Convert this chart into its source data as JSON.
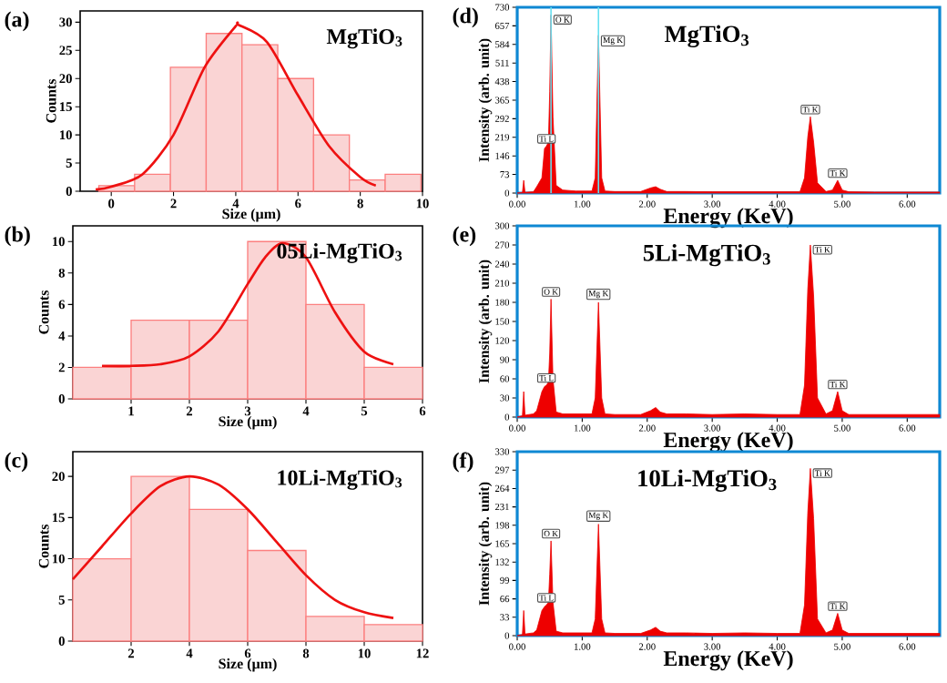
{
  "chart_data": [
    {
      "type": "histogram",
      "title": "MgTiO$_{3}$",
      "xlabel": "Size (µm)",
      "ylabel": "Counts",
      "xlim": [
        -1,
        10
      ],
      "ylim": [
        0,
        32
      ],
      "xticks": [
        0,
        2,
        4,
        6,
        8,
        10
      ],
      "yticks": [
        0,
        5,
        10,
        15,
        20,
        25,
        30
      ],
      "annotations": [
        "(a)"
      ],
      "series": [
        {
          "type": "histogram",
          "color": "#fad4d4",
          "bins": [
            -0.4,
            0.75,
            1.9,
            3.05,
            4.2,
            5.35,
            6.5,
            7.65,
            8.8,
            9.95
          ],
          "values": [
            1,
            3,
            22,
            28,
            26,
            20,
            10,
            2,
            3
          ]
        },
        {
          "type": "line",
          "color": "#ee1111",
          "x": [
            -0.5,
            0,
            1,
            2,
            3,
            4,
            4.1,
            5,
            6,
            7,
            8,
            8.5
          ],
          "values": [
            0.3,
            0.8,
            3,
            10,
            22,
            29.3,
            29.5,
            26.5,
            17,
            8,
            2.5,
            1
          ]
        }
      ]
    },
    {
      "type": "histogram",
      "title": "05Li-MgTiO$_{3}$",
      "xlabel": "Size (µm)",
      "ylabel": "Counts",
      "xlim": [
        0,
        6
      ],
      "ylim": [
        0,
        11
      ],
      "xticks": [
        1,
        2,
        3,
        4,
        5,
        6
      ],
      "yticks": [
        0,
        2,
        4,
        6,
        8,
        10
      ],
      "annotations": [
        "(b)"
      ],
      "series": [
        {
          "type": "histogram",
          "color": "#fad4d4",
          "bins": [
            0,
            1,
            2,
            3,
            4,
            5,
            6
          ],
          "values": [
            2,
            5,
            5,
            10,
            6,
            2
          ]
        },
        {
          "type": "line",
          "color": "#ee1111",
          "x": [
            0.5,
            1,
            1.5,
            2,
            2.5,
            3,
            3.3,
            3.6,
            4,
            4.5,
            5,
            5.5
          ],
          "values": [
            2.1,
            2.1,
            2.2,
            2.7,
            4.3,
            7.3,
            9,
            9.9,
            9,
            5.5,
            3,
            2.2
          ]
        }
      ]
    },
    {
      "type": "histogram",
      "title": "10Li-MgTiO$_{3}$",
      "xlabel": "Size (µm)",
      "ylabel": "Counts",
      "xlim": [
        0,
        12
      ],
      "ylim": [
        0,
        23
      ],
      "xticks": [
        2,
        4,
        6,
        8,
        10,
        12
      ],
      "yticks": [
        0,
        5,
        10,
        15,
        20
      ],
      "annotations": [
        "(c)"
      ],
      "series": [
        {
          "type": "histogram",
          "color": "#fad4d4",
          "bins": [
            0,
            2,
            4,
            6,
            8,
            10,
            12
          ],
          "values": [
            10,
            20,
            16,
            11,
            3,
            2
          ]
        },
        {
          "type": "line",
          "color": "#ee1111",
          "x": [
            0,
            1,
            2,
            3,
            4,
            5,
            6,
            7,
            8,
            9,
            10,
            11
          ],
          "values": [
            7.5,
            11.5,
            15.5,
            18.8,
            20,
            19,
            16,
            12,
            8,
            5,
            3.5,
            2.8
          ]
        }
      ]
    },
    {
      "type": "area",
      "title": "MgTiO$_{3}$",
      "xlabel": "Energy (KeV)",
      "ylabel": "Intensity (arb. unit)",
      "xlim": [
        0,
        6.5
      ],
      "ylim": [
        0,
        730
      ],
      "xticks": [
        {
          "value": 0,
          "label": "0.00"
        },
        {
          "value": 1,
          "label": "1.00"
        },
        {
          "value": 2,
          "label": "2.00"
        },
        {
          "value": 3,
          "label": "3.00"
        },
        {
          "value": 4,
          "label": "4.00"
        },
        {
          "value": 5,
          "label": "5.00"
        },
        {
          "value": 6,
          "label": "6.00"
        }
      ],
      "yticks": [
        0,
        73,
        146,
        219,
        292,
        365,
        438,
        511,
        584,
        657,
        730
      ],
      "ref_lines": [
        {
          "axis": "x",
          "value": 0.52,
          "color": "#66e0f0"
        },
        {
          "axis": "x",
          "value": 1.25,
          "color": "#66e0f0"
        }
      ],
      "annotations": [
        "(d)",
        {
          "text": "O K",
          "x": 0.52,
          "y": 700
        },
        {
          "text": "Mg K",
          "x": 1.25,
          "y": 620
        },
        {
          "text": "Ti L",
          "x": 0.45,
          "y": 185
        },
        {
          "text": "Ti K",
          "x": 4.51,
          "y": 300
        },
        {
          "text": "Ti K",
          "x": 4.93,
          "y": 50
        }
      ],
      "series": [
        {
          "type": "area",
          "color": "#ee0000",
          "x": [
            0,
            0.08,
            0.1,
            0.12,
            0.25,
            0.3,
            0.38,
            0.42,
            0.45,
            0.48,
            0.5,
            0.52,
            0.55,
            0.6,
            0.7,
            0.9,
            1.15,
            1.2,
            1.25,
            1.3,
            1.35,
            1.5,
            1.9,
            2.05,
            2.13,
            2.2,
            2.3,
            2.6,
            3.0,
            3.5,
            4.0,
            4.35,
            4.42,
            4.47,
            4.51,
            4.56,
            4.62,
            4.75,
            4.85,
            4.93,
            5.0,
            5.1,
            5.5,
            6.0,
            6.5
          ],
          "values": [
            0,
            2,
            50,
            3,
            5,
            25,
            60,
            175,
            185,
            200,
            400,
            700,
            300,
            30,
            12,
            8,
            8,
            60,
            620,
            60,
            8,
            6,
            6,
            20,
            25,
            15,
            6,
            6,
            5,
            5,
            5,
            5,
            60,
            220,
            300,
            200,
            40,
            6,
            12,
            50,
            12,
            5,
            4,
            4,
            4
          ]
        }
      ]
    },
    {
      "type": "area",
      "title": "5Li-MgTiO$_{3}$",
      "xlabel": "Energy (KeV)",
      "ylabel": "Intensity (arb. unit)",
      "xlim": [
        0,
        6.5
      ],
      "ylim": [
        0,
        300
      ],
      "xticks": [
        {
          "value": 0,
          "label": "0.00"
        },
        {
          "value": 1,
          "label": "1.00"
        },
        {
          "value": 2,
          "label": "2.00"
        },
        {
          "value": 3,
          "label": "3.00"
        },
        {
          "value": 4,
          "label": "4.00"
        },
        {
          "value": 5,
          "label": "5.00"
        },
        {
          "value": 6,
          "label": "6.00"
        }
      ],
      "yticks": [
        0,
        30,
        60,
        90,
        120,
        150,
        180,
        210,
        240,
        270,
        300
      ],
      "annotations": [
        "(e)",
        {
          "text": "O K",
          "x": 0.52,
          "y": 185
        },
        {
          "text": "Mg K",
          "x": 1.25,
          "y": 180
        },
        {
          "text": "Ti L",
          "x": 0.45,
          "y": 50
        },
        {
          "text": "Ti K",
          "x": 4.51,
          "y": 270
        },
        {
          "text": "Ti K",
          "x": 4.93,
          "y": 40
        }
      ],
      "series": [
        {
          "type": "area",
          "color": "#ee0000",
          "x": [
            0,
            0.08,
            0.1,
            0.12,
            0.25,
            0.3,
            0.38,
            0.42,
            0.45,
            0.48,
            0.5,
            0.52,
            0.55,
            0.6,
            0.7,
            0.9,
            1.15,
            1.2,
            1.25,
            1.3,
            1.35,
            1.5,
            1.9,
            2.05,
            2.13,
            2.2,
            2.3,
            2.6,
            3.0,
            3.5,
            4.0,
            4.35,
            4.42,
            4.47,
            4.51,
            4.56,
            4.62,
            4.75,
            4.85,
            4.93,
            5.0,
            5.1,
            5.5,
            6.0,
            6.5
          ],
          "values": [
            0,
            2,
            40,
            3,
            5,
            10,
            40,
            48,
            50,
            55,
            100,
            185,
            60,
            8,
            5,
            5,
            5,
            30,
            180,
            30,
            5,
            4,
            4,
            10,
            15,
            8,
            5,
            5,
            4,
            5,
            4,
            4,
            50,
            200,
            270,
            190,
            30,
            5,
            10,
            40,
            10,
            4,
            4,
            4,
            4
          ]
        }
      ]
    },
    {
      "type": "area",
      "title": "10Li-MgTiO$_{3}$",
      "xlabel": "Energy (KeV)",
      "ylabel": "Intensity (arb. unit)",
      "xlim": [
        0,
        6.5
      ],
      "ylim": [
        0,
        330
      ],
      "xticks": [
        {
          "value": 0,
          "label": "0.00"
        },
        {
          "value": 1,
          "label": "1.00"
        },
        {
          "value": 2,
          "label": "2.00"
        },
        {
          "value": 3,
          "label": "3.00"
        },
        {
          "value": 4,
          "label": "4.00"
        },
        {
          "value": 5,
          "label": "5.00"
        },
        {
          "value": 6,
          "label": "6.00"
        }
      ],
      "yticks": [
        0,
        33,
        66,
        99,
        132,
        165,
        198,
        231,
        264,
        297,
        330
      ],
      "annotations": [
        "(f)",
        {
          "text": "O K",
          "x": 0.52,
          "y": 170
        },
        {
          "text": "Mg K",
          "x": 1.25,
          "y": 200
        },
        {
          "text": "Ti L",
          "x": 0.45,
          "y": 55
        },
        {
          "text": "Ti K",
          "x": 4.51,
          "y": 300
        },
        {
          "text": "Ti K",
          "x": 4.93,
          "y": 40
        }
      ],
      "series": [
        {
          "type": "area",
          "color": "#ee0000",
          "x": [
            0,
            0.08,
            0.1,
            0.12,
            0.25,
            0.3,
            0.38,
            0.42,
            0.45,
            0.48,
            0.5,
            0.52,
            0.55,
            0.6,
            0.7,
            0.9,
            1.15,
            1.2,
            1.25,
            1.3,
            1.35,
            1.5,
            1.9,
            2.05,
            2.13,
            2.2,
            2.3,
            2.6,
            3.0,
            3.5,
            4.0,
            4.35,
            4.42,
            4.47,
            4.51,
            4.56,
            4.62,
            4.75,
            4.85,
            4.93,
            5.0,
            5.1,
            5.5,
            6.0,
            6.5
          ],
          "values": [
            0,
            2,
            45,
            3,
            5,
            10,
            45,
            52,
            55,
            60,
            110,
            170,
            60,
            8,
            5,
            5,
            5,
            30,
            200,
            30,
            5,
            4,
            4,
            10,
            15,
            8,
            5,
            5,
            4,
            5,
            4,
            4,
            55,
            220,
            300,
            210,
            30,
            5,
            10,
            40,
            10,
            4,
            4,
            4,
            4
          ]
        }
      ]
    }
  ]
}
